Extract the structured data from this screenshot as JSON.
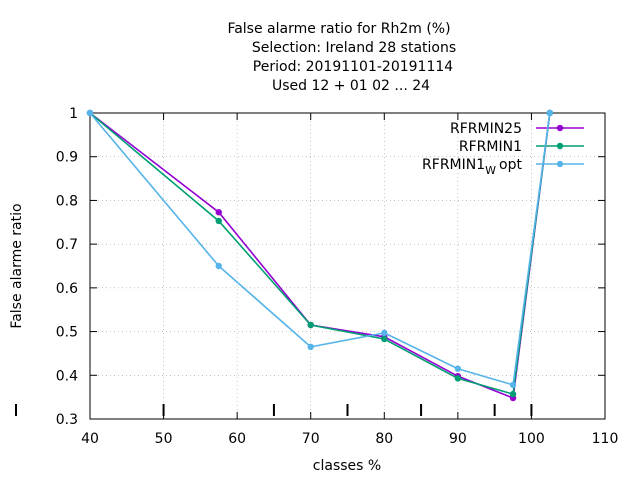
{
  "chart_data": {
    "type": "line",
    "title_lines": [
      "False alarme ratio  for Rh2m (%)",
      "Selection: Ireland     28 stations",
      "Period: 20191101-20191114",
      "Used  12 + 01 02 ... 24"
    ],
    "xlabel": "classes %",
    "ylabel": "False alarme ratio",
    "xlim": [
      40,
      110
    ],
    "ylim": [
      0.3,
      1.0
    ],
    "xticks": [
      40,
      50,
      60,
      70,
      80,
      90,
      100,
      110
    ],
    "yticks": [
      0.3,
      0.4,
      0.5,
      0.6,
      0.7,
      0.8,
      0.9,
      1.0
    ],
    "ytick_labels": [
      "0.3",
      "0.4",
      "0.5",
      "0.6",
      "0.7",
      "0.8",
      "0.9",
      "1"
    ],
    "xtick_labels": [
      "40",
      "50",
      "60",
      "70",
      "80",
      "90",
      "100",
      "110"
    ],
    "class_marks": [
      50,
      65,
      75,
      85,
      95,
      100
    ],
    "grid": true,
    "legend_position": "top-right",
    "series": [
      {
        "name": "RFRMIN25",
        "color": "#9400d3",
        "x": [
          40,
          57.5,
          70,
          80,
          90,
          97.5,
          102.5
        ],
        "y": [
          1.0,
          0.773,
          0.515,
          0.488,
          0.398,
          0.348,
          1.0
        ]
      },
      {
        "name": "RFRMIN1",
        "color": "#009e73",
        "x": [
          40,
          57.5,
          70,
          80,
          90,
          97.5,
          102.5
        ],
        "y": [
          1.0,
          0.753,
          0.515,
          0.483,
          0.393,
          0.357,
          1.0
        ]
      },
      {
        "name_main": "RFRMIN1",
        "name_sub": "W",
        "name_tail": "opt",
        "color": "#56b4e9",
        "x": [
          40,
          57.5,
          70,
          80,
          90,
          97.5,
          102.5
        ],
        "y": [
          1.0,
          0.65,
          0.465,
          0.497,
          0.415,
          0.378,
          1.0
        ]
      }
    ]
  }
}
